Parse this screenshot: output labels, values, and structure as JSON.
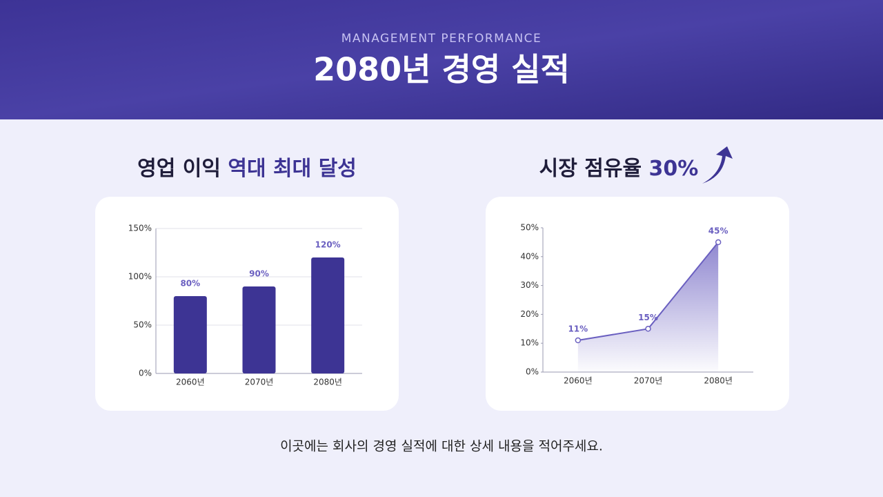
{
  "header": {
    "subtitle": "MANAGEMENT PERFORMANCE",
    "title": "2080년 경영 실적"
  },
  "chart_data": [
    {
      "type": "bar",
      "title": "영업 이익",
      "title_accent": "역대 최대 달성",
      "categories": [
        "2060년",
        "2070년",
        "2080년"
      ],
      "values": [
        80,
        90,
        120
      ],
      "value_labels": [
        "80%",
        "90%",
        "120%"
      ],
      "color": "#3d3494",
      "ylim": [
        0,
        150
      ],
      "yticks": [
        {
          "value": 0,
          "label": "0%"
        },
        {
          "value": 50,
          "label": "50%"
        },
        {
          "value": 100,
          "label": "100%"
        },
        {
          "value": 150,
          "label": "150%"
        }
      ],
      "grid": true
    },
    {
      "type": "line",
      "title": "시장 점유율",
      "title_accent": "30%",
      "categories": [
        "2060년",
        "2070년",
        "2080년"
      ],
      "values": [
        11,
        15,
        45
      ],
      "value_labels": [
        "11%",
        "15%",
        "45%"
      ],
      "color": "#6a5fc0",
      "ylim": [
        0,
        50
      ],
      "yticks": [
        {
          "value": 0,
          "label": "0%"
        },
        {
          "value": 10,
          "label": "10%"
        },
        {
          "value": 20,
          "label": "20%"
        },
        {
          "value": 30,
          "label": "30%"
        },
        {
          "value": 40,
          "label": "40%"
        },
        {
          "value": 50,
          "label": "50%"
        }
      ],
      "grid": false
    }
  ],
  "footer": "이곳에는 회사의 경영 실적에 대한 상세 내용을 적어주세요."
}
